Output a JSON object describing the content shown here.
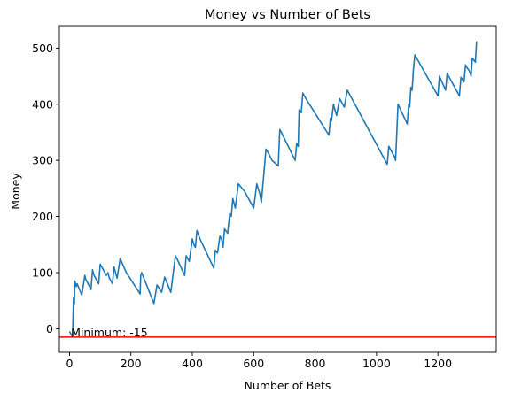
{
  "chart_data": {
    "type": "line",
    "title": "Money vs Number of Bets",
    "xlabel": "Number of Bets",
    "ylabel": "Money",
    "xlim": [
      -33,
      1390
    ],
    "ylim": [
      -42,
      540
    ],
    "xticks": [
      0,
      200,
      400,
      600,
      800,
      1000,
      1200
    ],
    "yticks": [
      0,
      100,
      200,
      300,
      400,
      500
    ],
    "grid": false,
    "line_color": "#1f77b4",
    "reference_line": {
      "y": -15,
      "color": "#ff0000"
    },
    "annotation": {
      "text": "Minimum: -15",
      "x": 5,
      "y": -15
    },
    "series": [
      {
        "x": [
          0,
          10,
          13,
          16,
          17,
          20,
          22,
          25,
          40,
          50,
          53,
          56,
          70,
          75,
          80,
          90,
          95,
          100,
          120,
          125,
          130,
          140,
          145,
          155,
          165,
          185,
          230,
          232,
          235,
          275,
          285,
          300,
          310,
          330,
          345,
          350,
          375,
          380,
          390,
          400,
          405,
          410,
          415,
          425,
          470,
          475,
          482,
          490,
          495,
          500,
          505,
          515,
          522,
          527,
          532,
          540,
          550,
          570,
          600,
          610,
          620,
          625,
          640,
          648,
          655,
          660,
          680,
          685,
          690,
          735,
          740,
          745,
          748,
          755,
          760,
          765,
          770,
          845,
          850,
          853,
          860,
          862,
          870,
          880,
          885,
          895,
          905,
          1035,
          1040,
          1060,
          1062,
          1065,
          1070,
          1100,
          1105,
          1108,
          1112,
          1116,
          1120,
          1125,
          1200,
          1205,
          1225,
          1230,
          1270,
          1275,
          1285,
          1290,
          1295,
          1302,
          1305,
          1308,
          1312,
          1318,
          1322,
          1326
        ],
        "y": [
          -5,
          -15,
          55,
          45,
          85,
          80,
          75,
          80,
          60,
          95,
          88,
          85,
          70,
          105,
          95,
          85,
          80,
          115,
          95,
          100,
          90,
          80,
          110,
          90,
          125,
          100,
          62,
          95,
          100,
          45,
          78,
          65,
          92,
          65,
          130,
          125,
          95,
          130,
          120,
          160,
          150,
          145,
          175,
          160,
          108,
          140,
          135,
          165,
          160,
          145,
          178,
          170,
          205,
          200,
          232,
          215,
          258,
          245,
          215,
          258,
          240,
          225,
          320,
          313,
          305,
          300,
          290,
          355,
          350,
          300,
          330,
          325,
          390,
          385,
          420,
          415,
          410,
          345,
          375,
          370,
          400,
          395,
          380,
          410,
          405,
          395,
          425,
          293,
          325,
          305,
          300,
          335,
          400,
          365,
          400,
          395,
          430,
          425,
          460,
          488,
          415,
          450,
          425,
          455,
          415,
          448,
          440,
          470,
          465,
          460,
          455,
          450,
          482,
          478,
          475,
          512
        ]
      }
    ]
  }
}
